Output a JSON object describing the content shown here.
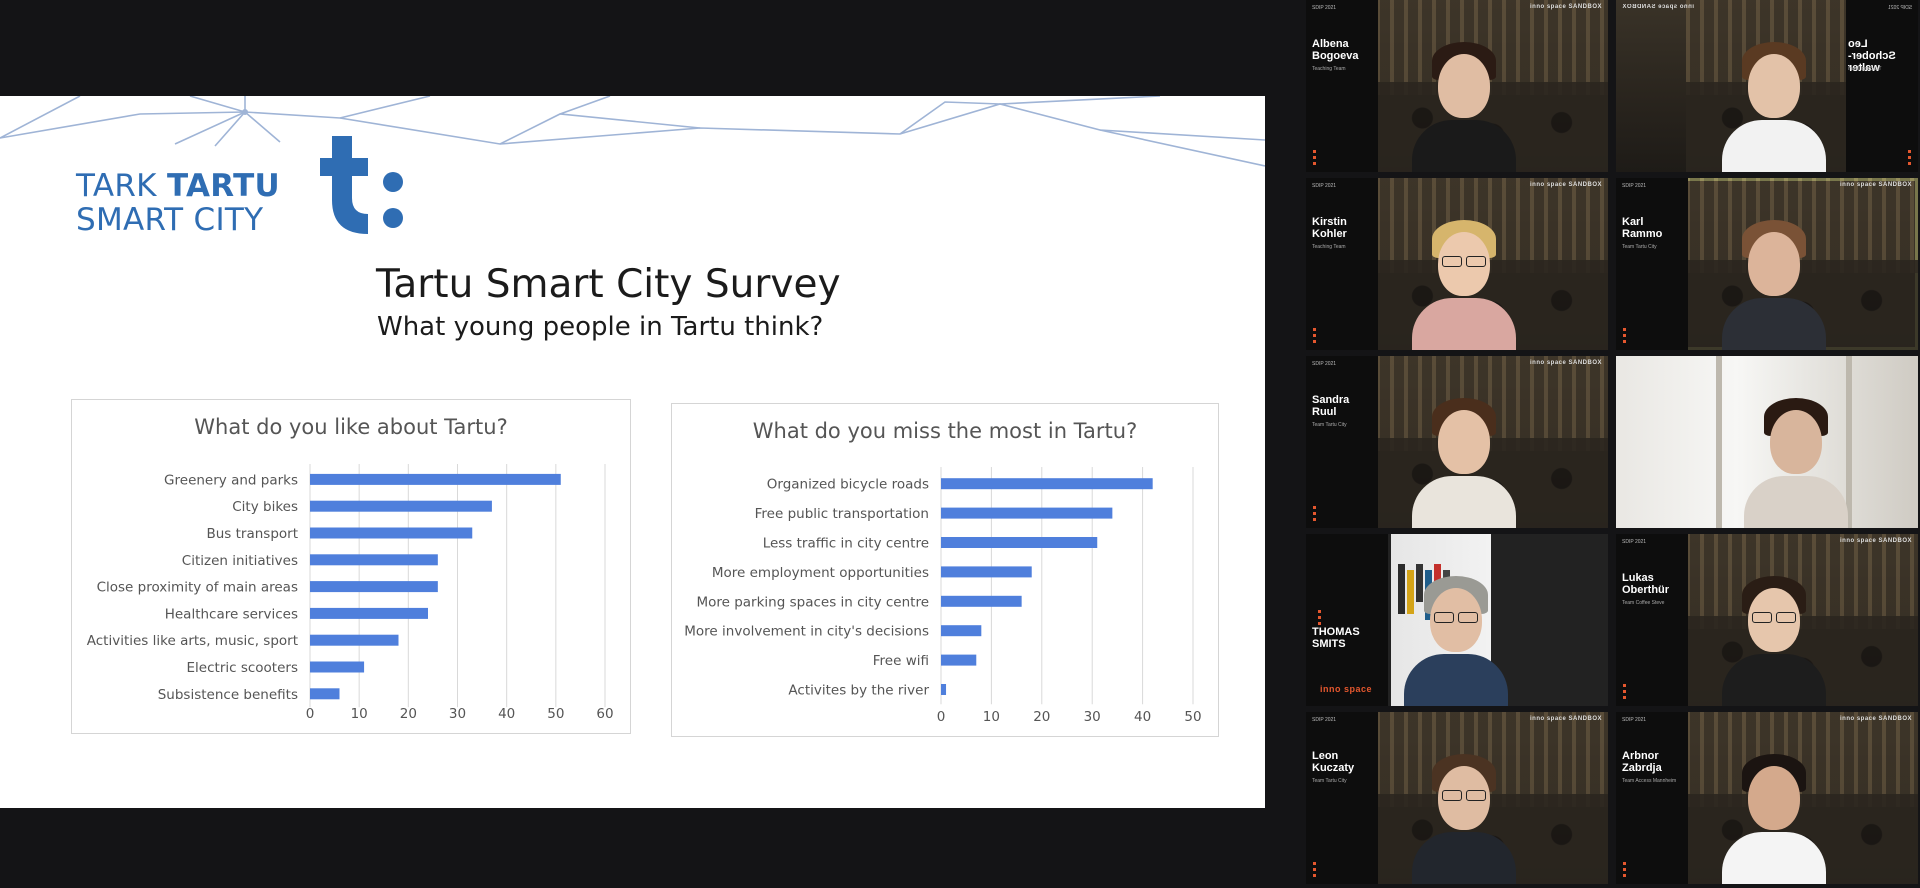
{
  "slide": {
    "logo_line1_a": "TARK",
    "logo_line1_b": "TARTU",
    "logo_line2": "SMART CITY",
    "logo_mark": "t:",
    "title": "Tartu Smart City Survey",
    "subtitle": "What young people in Tartu think?"
  },
  "chart_data": [
    {
      "type": "bar",
      "orientation": "horizontal",
      "title": "What do you like about Tartu?",
      "categories": [
        "Greenery and parks",
        "City bikes",
        "Bus transport",
        "Citizen initiatives",
        "Close proximity of main areas",
        "Healthcare services",
        "Activities like arts, music, sport",
        "Electric scooters",
        "Subsistence benefits"
      ],
      "values": [
        51,
        37,
        33,
        26,
        26,
        24,
        18,
        11,
        6
      ],
      "xlim": [
        0,
        60
      ],
      "xticks": [
        0,
        10,
        20,
        30,
        40,
        50,
        60
      ],
      "color": "#4f7fdc",
      "grid": true
    },
    {
      "type": "bar",
      "orientation": "horizontal",
      "title": "What do you miss the most in Tartu?",
      "categories": [
        "Organized bicycle roads",
        "Free public transportation",
        "Less traffic in city centre",
        "More employment opportunities",
        "More parking spaces in city centre",
        "More involvement in city's decisions",
        "Free wifi",
        "Activites by the river"
      ],
      "values": [
        42,
        34,
        31,
        18,
        16,
        8,
        7,
        1
      ],
      "xlim": [
        0,
        50
      ],
      "xticks": [
        0,
        10,
        20,
        30,
        40,
        50
      ],
      "color": "#4f7fdc",
      "grid": true
    }
  ],
  "participants": [
    {
      "name": "Albena Bogoeva",
      "role": "Teaching Team",
      "tag": "SDIP 2021",
      "brand": "inno space  SANDBOX",
      "active": false,
      "mirrored": false
    },
    {
      "name": "Leo Schober-walter",
      "role": "Teaching Team",
      "tag": "SDIP 2021",
      "brand": "inno space  SANDBOX",
      "active": false,
      "mirrored": true
    },
    {
      "name": "Kirstin Kohler",
      "role": "Teaching Team",
      "tag": "SDIP 2021",
      "brand": "inno space  SANDBOX",
      "active": false,
      "mirrored": false
    },
    {
      "name": "Karl Rammo",
      "role": "Team Tartu City",
      "tag": "SDIP 2021",
      "brand": "inno space  SANDBOX",
      "active": true,
      "mirrored": false
    },
    {
      "name": "Sandra Ruul",
      "role": "Team Tartu City",
      "tag": "SDIP 2021",
      "brand": "inno space  SANDBOX",
      "active": false,
      "mirrored": false
    },
    {
      "name": "",
      "role": "",
      "tag": "",
      "brand": "",
      "active": false,
      "mirrored": false
    },
    {
      "name": "THOMAS SMITS",
      "role": "",
      "tag": "",
      "brand": "inno space",
      "active": false,
      "mirrored": false
    },
    {
      "name": "Lukas Oberthür",
      "role": "Team Coffee Steve",
      "tag": "SDIP 2021",
      "brand": "inno space  SANDBOX",
      "active": false,
      "mirrored": false
    },
    {
      "name": "Leon Kuczaty",
      "role": "Team Tartu City",
      "tag": "SDIP 2021",
      "brand": "inno space  SANDBOX",
      "active": false,
      "mirrored": false
    },
    {
      "name": "Arbnor Zabrdja",
      "role": "Team Access Mannheim",
      "tag": "SDIP 2021",
      "brand": "inno space  SANDBOX",
      "active": false,
      "mirrored": false
    }
  ]
}
